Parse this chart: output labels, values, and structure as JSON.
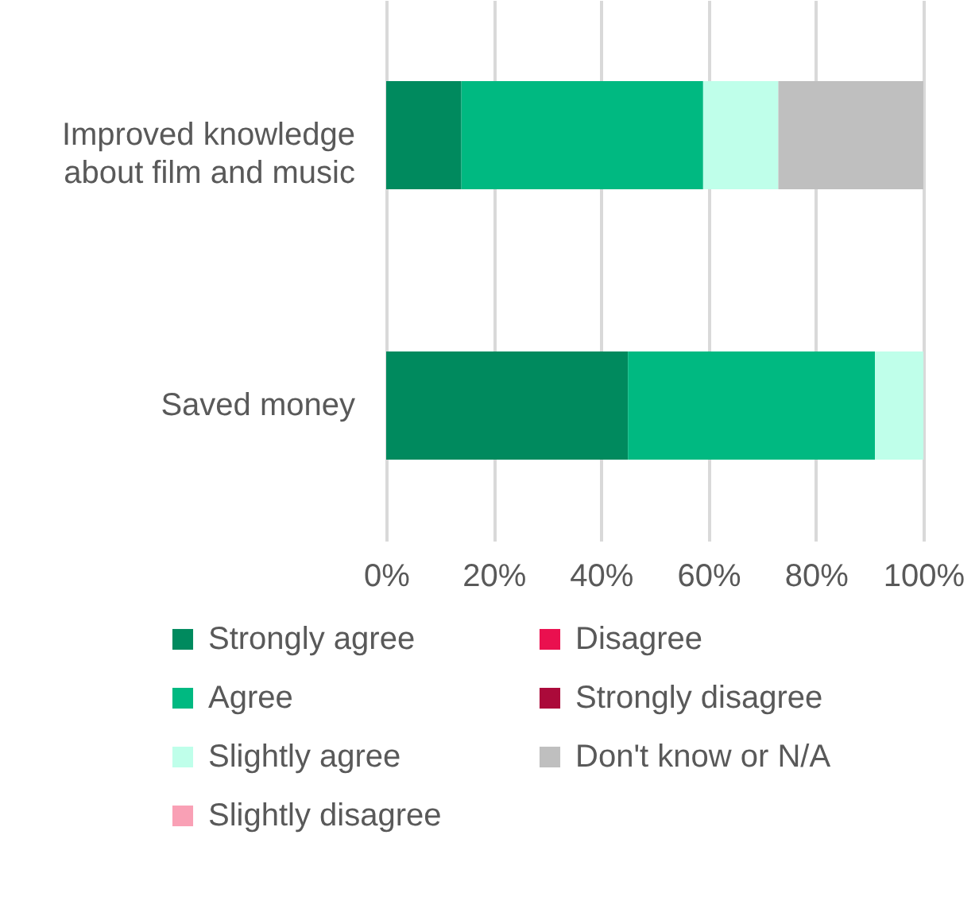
{
  "chart_data": {
    "type": "bar",
    "orientation": "horizontal",
    "stacked": true,
    "grid": true,
    "legend": "bottom",
    "categories": [
      "Improved knowledge about film and music",
      "Saved money"
    ],
    "xlim": [
      0,
      100
    ],
    "xticks": [
      {
        "value": 0,
        "label": "0%"
      },
      {
        "value": 20,
        "label": "20%"
      },
      {
        "value": 40,
        "label": "40%"
      },
      {
        "value": 60,
        "label": "60%"
      },
      {
        "value": 80,
        "label": "80%"
      },
      {
        "value": 100,
        "label": "100%"
      }
    ],
    "series": [
      {
        "name": "Strongly agree",
        "color": "#008a5e",
        "values": [
          14,
          45
        ]
      },
      {
        "name": "Agree",
        "color": "#00b981",
        "values": [
          45,
          46
        ]
      },
      {
        "name": "Slightly agree",
        "color": "#bfffea",
        "values": [
          14,
          9
        ]
      },
      {
        "name": "Slightly disagree",
        "color": "#f9a0b5",
        "values": [
          0,
          0
        ]
      },
      {
        "name": "Disagree",
        "color": "#ea104f",
        "values": [
          0,
          0
        ]
      },
      {
        "name": "Strongly disagree",
        "color": "#ab0a3a",
        "values": [
          0,
          0
        ]
      },
      {
        "name": "Don't know or N/A",
        "color": "#bfbfbf",
        "values": [
          27,
          0
        ]
      }
    ]
  }
}
